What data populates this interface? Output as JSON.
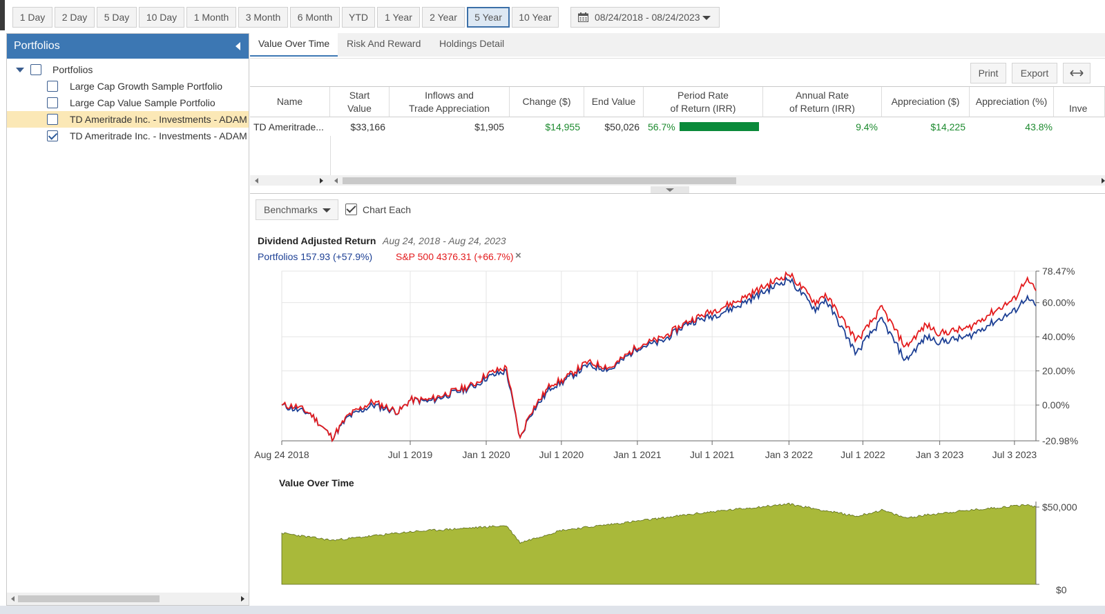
{
  "range_bar": {
    "buttons": [
      "1 Day",
      "2 Day",
      "5 Day",
      "10 Day",
      "1 Month",
      "3 Month",
      "6 Month",
      "YTD",
      "1 Year",
      "2 Year",
      "5 Year",
      "10 Year"
    ],
    "active": "5 Year",
    "date_range": "08/24/2018 - 08/24/2023"
  },
  "left_panel": {
    "title": "Portfolios",
    "tree": [
      {
        "label": "Portfolios",
        "checked": false,
        "level": 0
      },
      {
        "label": "Large Cap Growth Sample Portfolio",
        "checked": false,
        "level": 1
      },
      {
        "label": "Large Cap Value Sample Portfolio",
        "checked": false,
        "level": 1
      },
      {
        "label": "TD Ameritrade Inc. - Investments - ADAM",
        "checked": false,
        "level": 1,
        "selected": true
      },
      {
        "label": "TD Ameritrade Inc. - Investments - ADAM",
        "checked": true,
        "level": 1
      }
    ]
  },
  "tabs": [
    "Value Over Time",
    "Risk And Reward",
    "Holdings Detail"
  ],
  "active_tab": "Value Over Time",
  "actions": {
    "print": "Print",
    "export": "Export"
  },
  "table": {
    "headers": [
      "Name",
      "Start\nValue",
      "Inflows and\nTrade Appreciation",
      "Change ($)",
      "End Value",
      "Period Rate\nof Return (IRR)",
      "Annual Rate\nof Return (IRR)",
      "Appreciation ($)",
      "Appreciation (%)",
      "Inve"
    ],
    "row": {
      "name": "TD Ameritrade...",
      "start_value": "$33,166",
      "inflows": "$1,905",
      "change": "$14,955",
      "end_value": "$50,026",
      "period_rate": "56.7%",
      "period_rate_pct": 56.7,
      "annual_rate": "9.4%",
      "appreciation_usd": "$14,225",
      "appreciation_pct": "43.8%"
    }
  },
  "chart_controls": {
    "benchmarks": "Benchmarks",
    "chart_each": "Chart Each"
  },
  "chart_data": [
    {
      "type": "line",
      "title": "Dividend Adjusted Return",
      "subtitle": "Aug 24, 2018 - Aug 24, 2023",
      "x_ticks": [
        "Aug 24 2018",
        "Jul 1 2019",
        "Jan 1 2020",
        "Jul 1 2020",
        "Jan 1 2021",
        "Jul 1 2021",
        "Jan 3 2022",
        "Jul 1 2022",
        "Jan 3 2023",
        "Jul 3 2023"
      ],
      "y_ticks": [
        "78.47%",
        "60.00%",
        "40.00%",
        "20.00%",
        "0.00%",
        "-20.98%"
      ],
      "ylim": [
        -20.98,
        78.47
      ],
      "legend": [
        {
          "label": "Portfolios 157.93 (+57.9%)",
          "color": "#1c3f94"
        },
        {
          "label": "S&P 500 4376.31 (+66.7%)",
          "color": "#e31a1c"
        }
      ],
      "remove_glyph": "×",
      "x": [
        "2018-08-24",
        "2018-10-01",
        "2018-11-01",
        "2018-12-24",
        "2019-02-01",
        "2019-04-01",
        "2019-06-03",
        "2019-07-01",
        "2019-08-15",
        "2019-10-01",
        "2019-12-02",
        "2020-01-02",
        "2020-02-19",
        "2020-03-23",
        "2020-04-15",
        "2020-06-08",
        "2020-07-01",
        "2020-09-01",
        "2020-10-30",
        "2021-01-04",
        "2021-03-01",
        "2021-05-03",
        "2021-07-01",
        "2021-09-01",
        "2021-11-01",
        "2022-01-03",
        "2022-03-08",
        "2022-04-01",
        "2022-06-16",
        "2022-07-01",
        "2022-08-16",
        "2022-10-12",
        "2022-12-01",
        "2023-01-03",
        "2023-03-13",
        "2023-05-01",
        "2023-07-03",
        "2023-07-31",
        "2023-08-24"
      ],
      "series": [
        {
          "name": "Portfolios",
          "color": "#1c3f94",
          "values": [
            0,
            -3,
            -5,
            -19,
            -7,
            0,
            -4,
            3,
            2,
            6,
            11,
            16,
            20,
            -20,
            -6,
            11,
            13,
            23,
            21,
            34,
            37,
            48,
            52,
            58,
            66,
            74,
            56,
            62,
            30,
            36,
            50,
            26,
            40,
            37,
            40,
            47,
            55,
            63,
            58
          ]
        },
        {
          "name": "S&P 500",
          "color": "#e31a1c",
          "values": [
            0,
            -1,
            -5,
            -19,
            -6,
            2,
            -4,
            3,
            3,
            7,
            12,
            18,
            22,
            -20,
            -5,
            13,
            14,
            25,
            22,
            35,
            39,
            49,
            55,
            61,
            69,
            77,
            60,
            65,
            38,
            42,
            57,
            34,
            47,
            42,
            45,
            53,
            62,
            74,
            67
          ]
        }
      ]
    },
    {
      "type": "area",
      "title": "Value Over Time",
      "y_ticks": [
        "$50,000",
        "$0"
      ],
      "ylim": [
        0,
        50000
      ],
      "color": "#a9b93a",
      "x": [
        "2018-08-24",
        "2018-12-24",
        "2019-07-01",
        "2020-02-19",
        "2020-03-23",
        "2020-07-01",
        "2021-01-04",
        "2021-07-01",
        "2022-01-03",
        "2022-06-16",
        "2022-08-16",
        "2022-10-12",
        "2023-01-03",
        "2023-07-31",
        "2023-08-24"
      ],
      "values": [
        33166,
        28500,
        34000,
        38000,
        27000,
        35000,
        41000,
        47000,
        52000,
        44000,
        48000,
        43000,
        46000,
        51500,
        50026
      ]
    }
  ]
}
